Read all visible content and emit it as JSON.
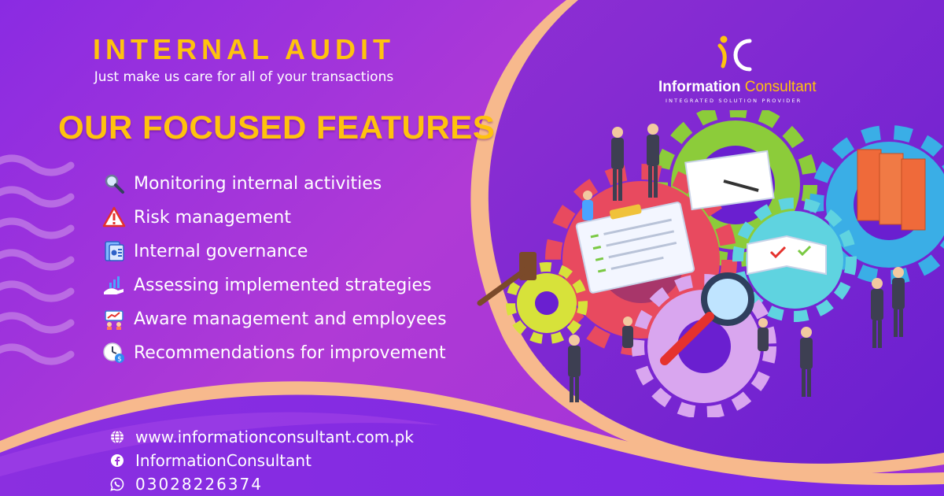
{
  "header": {
    "title": "INTERNAL AUDIT",
    "tagline": "Just make us care for all of your transactions"
  },
  "features_title": "OUR FOCUSED FEATURES",
  "features": [
    {
      "label": "Monitoring internal activities",
      "icon": "magnifier-icon"
    },
    {
      "label": "Risk management",
      "icon": "warning-icon"
    },
    {
      "label": "Internal governance",
      "icon": "governance-document-icon"
    },
    {
      "label": "Assessing implemented strategies",
      "icon": "growth-hand-icon"
    },
    {
      "label": "Aware management and employees",
      "icon": "team-chart-icon"
    },
    {
      "label": "Recommendations for improvement",
      "icon": "clock-money-icon"
    }
  ],
  "logo": {
    "name_part1": "Information",
    "name_part2": "Consultant",
    "subtitle": "INTEGRATED SOLUTION PROVIDER"
  },
  "contact": {
    "website": "www.informationconsultant.com.pk",
    "facebook": "InformationConsultant",
    "phone": "03028226374"
  },
  "colors": {
    "accent": "#ffc20e",
    "background": "#9b2fd8",
    "text": "#ffffff",
    "wave": "#f6b38a"
  }
}
